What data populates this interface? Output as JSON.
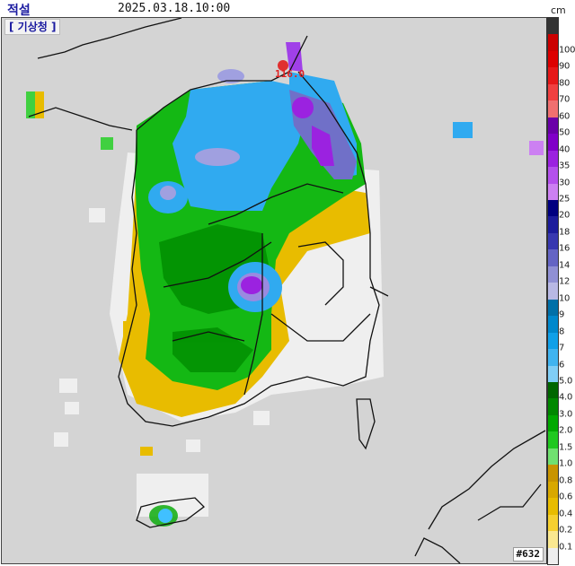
{
  "header": {
    "title": "적설",
    "datetime": "2025.03.18.10:00",
    "unit": "cm"
  },
  "map": {
    "agency_label": "[ 기상청 ]",
    "station_number": "#632",
    "max_marker": {
      "value": "116.0",
      "color": "#e02020"
    },
    "background_color": "#d4d4d4",
    "no_snow_fill": "#efefef"
  },
  "legend": {
    "unit": "cm",
    "segments": [
      {
        "color": "#333333",
        "label": ""
      },
      {
        "color": "#cc0000",
        "label": "100"
      },
      {
        "color": "#dd0000",
        "label": "90"
      },
      {
        "color": "#e61818",
        "label": "80"
      },
      {
        "color": "#f04040",
        "label": "70"
      },
      {
        "color": "#f07070",
        "label": "60"
      },
      {
        "color": "#6a00a8",
        "label": "50"
      },
      {
        "color": "#8000c8",
        "label": "40"
      },
      {
        "color": "#9b22e0",
        "label": "35"
      },
      {
        "color": "#b450ec",
        "label": "30"
      },
      {
        "color": "#cc80f2",
        "label": "25"
      },
      {
        "color": "#000080",
        "label": "20"
      },
      {
        "color": "#1c1c9c",
        "label": "18"
      },
      {
        "color": "#3838b0",
        "label": "16"
      },
      {
        "color": "#6464c4",
        "label": "14"
      },
      {
        "color": "#9090d4",
        "label": "12"
      },
      {
        "color": "#b8b8e4",
        "label": "10"
      },
      {
        "color": "#0070a8",
        "label": "9"
      },
      {
        "color": "#0088cc",
        "label": "8"
      },
      {
        "color": "#10a0e8",
        "label": "7"
      },
      {
        "color": "#40b4f0",
        "label": "6"
      },
      {
        "color": "#80cef6",
        "label": "5.0"
      },
      {
        "color": "#006600",
        "label": "4.0"
      },
      {
        "color": "#008800",
        "label": "3.0"
      },
      {
        "color": "#00a800",
        "label": "2.0"
      },
      {
        "color": "#20c820",
        "label": "1.5"
      },
      {
        "color": "#70e070",
        "label": "1.0"
      },
      {
        "color": "#c89400",
        "label": "0.8"
      },
      {
        "color": "#d8a800",
        "label": "0.6"
      },
      {
        "color": "#e8bc00",
        "label": "0.4"
      },
      {
        "color": "#f6d030",
        "label": "0.2"
      },
      {
        "color": "#fae890",
        "label": "0.1"
      },
      {
        "color": "#eeeeee",
        "label": ""
      }
    ]
  }
}
